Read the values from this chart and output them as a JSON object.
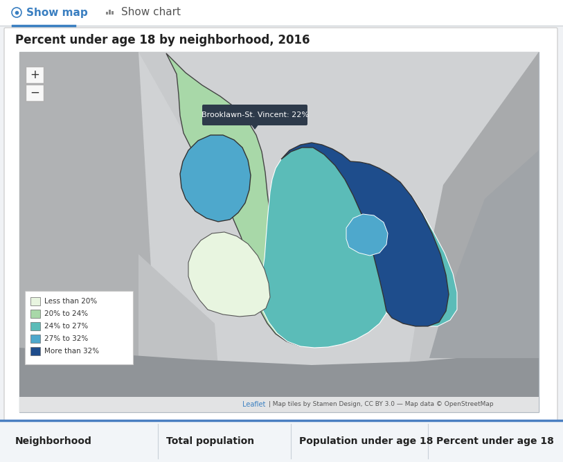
{
  "title": "Percent under age 18 by neighborhood, 2016",
  "tab1_text": "Show map",
  "tab2_text": "Show chart",
  "tab_underline_color": "#3a7fc1",
  "outer_bg": "#f0f2f5",
  "card_bg": "#ffffff",
  "card_border": "#d0d0d0",
  "legend_items": [
    {
      "label": "Less than 20%",
      "color": "#e8f5e0"
    },
    {
      "label": "20% to 24%",
      "color": "#a8d8a8"
    },
    {
      "label": "24% to 27%",
      "color": "#5bbcb8"
    },
    {
      "label": "27% to 32%",
      "color": "#4ea8cc"
    },
    {
      "label": "More than 32%",
      "color": "#1e4d8c"
    }
  ],
  "tooltip_text": "Brooklawn-St. Vincent: 22%",
  "tooltip_bg": "#2d3a4a",
  "tooltip_text_color": "#ffffff",
  "leaflet_color": "#3a7fc1",
  "attribution_color": "#555555",
  "table_header_top_border": "#4a7fc1",
  "table_border_color": "#c8d0d8",
  "table_cols": [
    "Neighborhood",
    "Total population",
    "Population under age 18",
    "Percent under age 18"
  ],
  "title_fontsize": 12,
  "tab_fontsize": 11
}
